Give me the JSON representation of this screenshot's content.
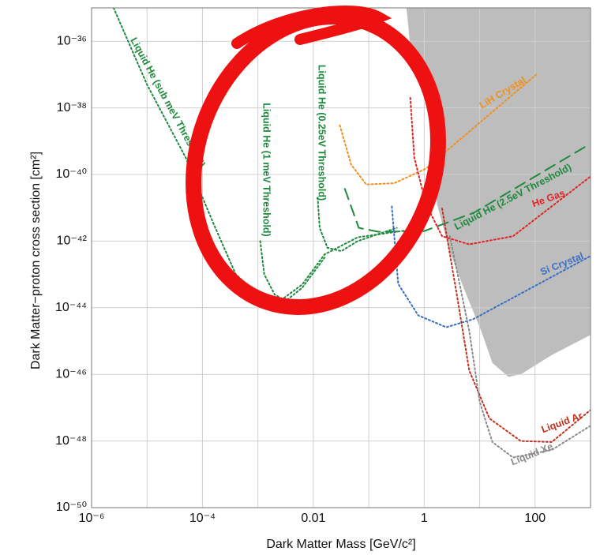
{
  "chart_data": {
    "type": "line",
    "x_label": "Dark Matter Mass [GeV/c²]",
    "y_label": "Dark Matter−proton cross section [cm²]",
    "xscale": "log",
    "yscale": "log",
    "grid": true,
    "xlim": [
      1e-06,
      1000
    ],
    "ylim": [
      1e-50,
      1e-35
    ],
    "xticks": [
      {
        "value": 1e-06,
        "label": "10⁻⁶"
      },
      {
        "value": 0.0001,
        "label": "10⁻⁴"
      },
      0.01,
      1,
      100
    ],
    "xminor": [
      1e-05,
      0.001,
      0.1,
      10
    ],
    "yticks": [
      {
        "value": 1e-50,
        "label": "10⁻⁵⁰"
      },
      {
        "value": 1e-48,
        "label": "10⁻⁴⁸"
      },
      {
        "value": 1e-46,
        "label": "10⁻⁴⁶"
      },
      {
        "value": 1e-44,
        "label": "10⁻⁴⁴"
      },
      {
        "value": 1e-42,
        "label": "10⁻⁴²"
      },
      {
        "value": 1e-40,
        "label": "10⁻⁴⁰"
      },
      {
        "value": 1e-38,
        "label": "10⁻³⁸"
      },
      {
        "value": 1e-36,
        "label": "10⁻³⁶"
      }
    ],
    "regions": [
      {
        "color": "#bdbdbd",
        "x": [
          0.48,
          0.56,
          1.26,
          1.7,
          1.5,
          1.7,
          2.9,
          5.5,
          10.7,
          17,
          33,
          55,
          200,
          980,
          980
        ],
        "values": [
          1e-35,
          7e-37,
          4.6e-38,
          5.1e-39,
          3.3e-40,
          1.3e-41,
          4.7e-43,
          3e-44,
          2e-45,
          2.2e-46,
          8.4e-47,
          1e-46,
          3.8e-46,
          1.5e-45,
          1e-35
        ]
      }
    ],
    "series": [
      {
        "name": "Liquid He (sub meV Threshold)",
        "color": "#1f8a3e",
        "style": "dotted",
        "x": [
          2.5e-06,
          1e-05,
          5e-05,
          0.00016,
          0.0004,
          0.001,
          0.0025,
          0.0063,
          0.016,
          0.063,
          1
        ],
        "values": [
          1e-35,
          5e-38,
          3.2e-40,
          3.2e-42,
          1e-43,
          2.5e-44,
          1.6e-44,
          5e-44,
          4e-43,
          1.3e-42,
          2.5e-42
        ]
      },
      {
        "name": "Liquid He (1 meV Threshold)",
        "color": "#1f8a3e",
        "style": "dotted",
        "x": [
          0.0011,
          0.0013,
          0.002,
          0.0032,
          0.0063,
          0.016
        ],
        "values": [
          1e-42,
          1e-43,
          2.5e-44,
          1.6e-44,
          4e-44,
          3.2e-43
        ]
      },
      {
        "name": "Liquid He (0.25eV Threshold)",
        "color": "#1f8a3e",
        "style": "dotted",
        "x": [
          0.012,
          0.013,
          0.018,
          0.032,
          0.063,
          0.32
        ],
        "values": [
          2e-41,
          2.5e-42,
          6.3e-43,
          5e-43,
          1e-42,
          2.5e-42
        ]
      },
      {
        "name": "Liquid He (2.5eV Threshold)",
        "color": "#1f8a3e",
        "style": "dashed",
        "x": [
          0.037,
          0.066,
          0.15,
          1,
          8,
          900
        ],
        "values": [
          3.7e-41,
          2.5e-42,
          1.9e-42,
          2e-42,
          7.2e-42,
          7.6e-40
        ]
      },
      {
        "name": "LiH Crystal",
        "color": "#f0901e",
        "style": "dotted",
        "x": [
          0.03,
          0.048,
          0.09,
          0.29,
          1.07,
          105
        ],
        "values": [
          3e-39,
          2e-40,
          5e-41,
          5.5e-41,
          1.5e-40,
          1e-37
        ]
      },
      {
        "name": "He Gas",
        "color": "#e52222",
        "style": "dotted",
        "x": [
          0.56,
          0.66,
          1.07,
          2.1,
          6.5,
          40,
          980
        ],
        "values": [
          2e-38,
          3.3e-40,
          1.3e-41,
          1.4e-42,
          8e-43,
          1.4e-42,
          8.5e-41
        ]
      },
      {
        "name": "Si Crystal",
        "color": "#3a6fc4",
        "style": "dotted",
        "x": [
          0.26,
          0.34,
          0.78,
          2.5,
          7.6,
          980
        ],
        "values": [
          1.1e-41,
          5.2e-44,
          5.9e-45,
          2.6e-45,
          4.5e-45,
          3.5e-43
        ]
      },
      {
        "name": "Liquid Ar",
        "color": "#c0301e",
        "style": "dotted",
        "x": [
          2.1,
          4,
          6.5,
          15,
          55,
          200,
          980
        ],
        "values": [
          9.5e-42,
          1.8e-44,
          1.3e-46,
          4.8e-48,
          1e-48,
          9.3e-49,
          8.3e-48
        ]
      },
      {
        "name": "Liquid Xe",
        "color": "#8a8a8a",
        "style": "dotted",
        "x": [
          2.9,
          6.5,
          10,
          17,
          40,
          200,
          980
        ],
        "values": [
          1.4e-42,
          2e-45,
          1.5e-47,
          9.3e-49,
          3.2e-49,
          5.4e-49,
          2.8e-48
        ]
      }
    ]
  }
}
